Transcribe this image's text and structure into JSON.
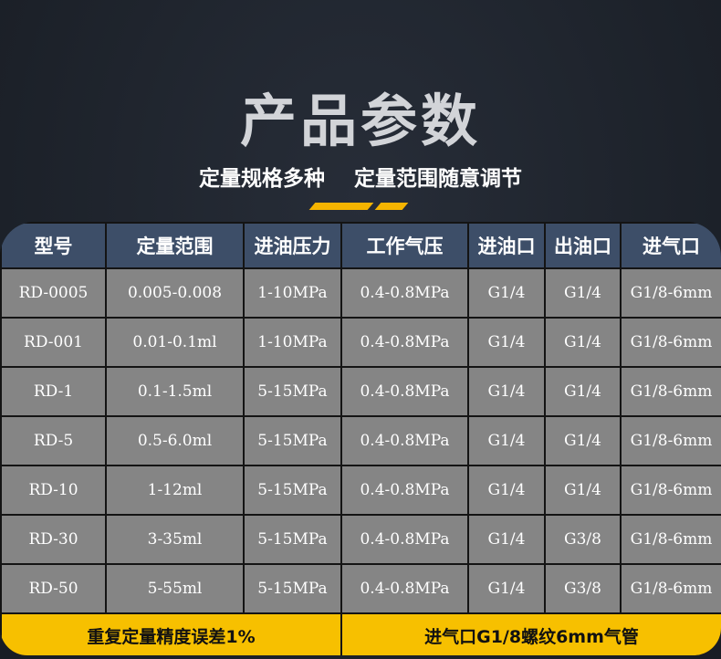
{
  "title": "产品参数",
  "subtitle": [
    "定量规格多种",
    "定量范围随意调节"
  ],
  "colors": {
    "accent": "#f5b400",
    "header": "#3d4e68",
    "cell": "#858585",
    "footer": "#f7c000"
  },
  "table": {
    "headers": [
      "型号",
      "定量范围",
      "进油压力",
      "工作气压",
      "进油口",
      "出油口",
      "进气口"
    ],
    "rows": [
      [
        "RD-0005",
        "0.005-0.008",
        "1-10MPa",
        "0.4-0.8MPa",
        "G1/4",
        "G1/4",
        "G1/8-6mm"
      ],
      [
        "RD-001",
        "0.01-0.1ml",
        "1-10MPa",
        "0.4-0.8MPa",
        "G1/4",
        "G1/4",
        "G1/8-6mm"
      ],
      [
        "RD-1",
        "0.1-1.5ml",
        "5-15MPa",
        "0.4-0.8MPa",
        "G1/4",
        "G1/4",
        "G1/8-6mm"
      ],
      [
        "RD-5",
        "0.5-6.0ml",
        "5-15MPa",
        "0.4-0.8MPa",
        "G1/4",
        "G1/4",
        "G1/8-6mm"
      ],
      [
        "RD-10",
        "1-12ml",
        "5-15MPa",
        "0.4-0.8MPa",
        "G1/4",
        "G1/4",
        "G1/8-6mm"
      ],
      [
        "RD-30",
        "3-35ml",
        "5-15MPa",
        "0.4-0.8MPa",
        "G1/4",
        "G3/8",
        "G1/8-6mm"
      ],
      [
        "RD-50",
        "5-55ml",
        "5-15MPa",
        "0.4-0.8MPa",
        "G1/4",
        "G3/8",
        "G1/8-6mm"
      ]
    ],
    "footer": [
      "重复定量精度误差1%",
      "进气口G1/8螺纹6mm气管"
    ]
  }
}
